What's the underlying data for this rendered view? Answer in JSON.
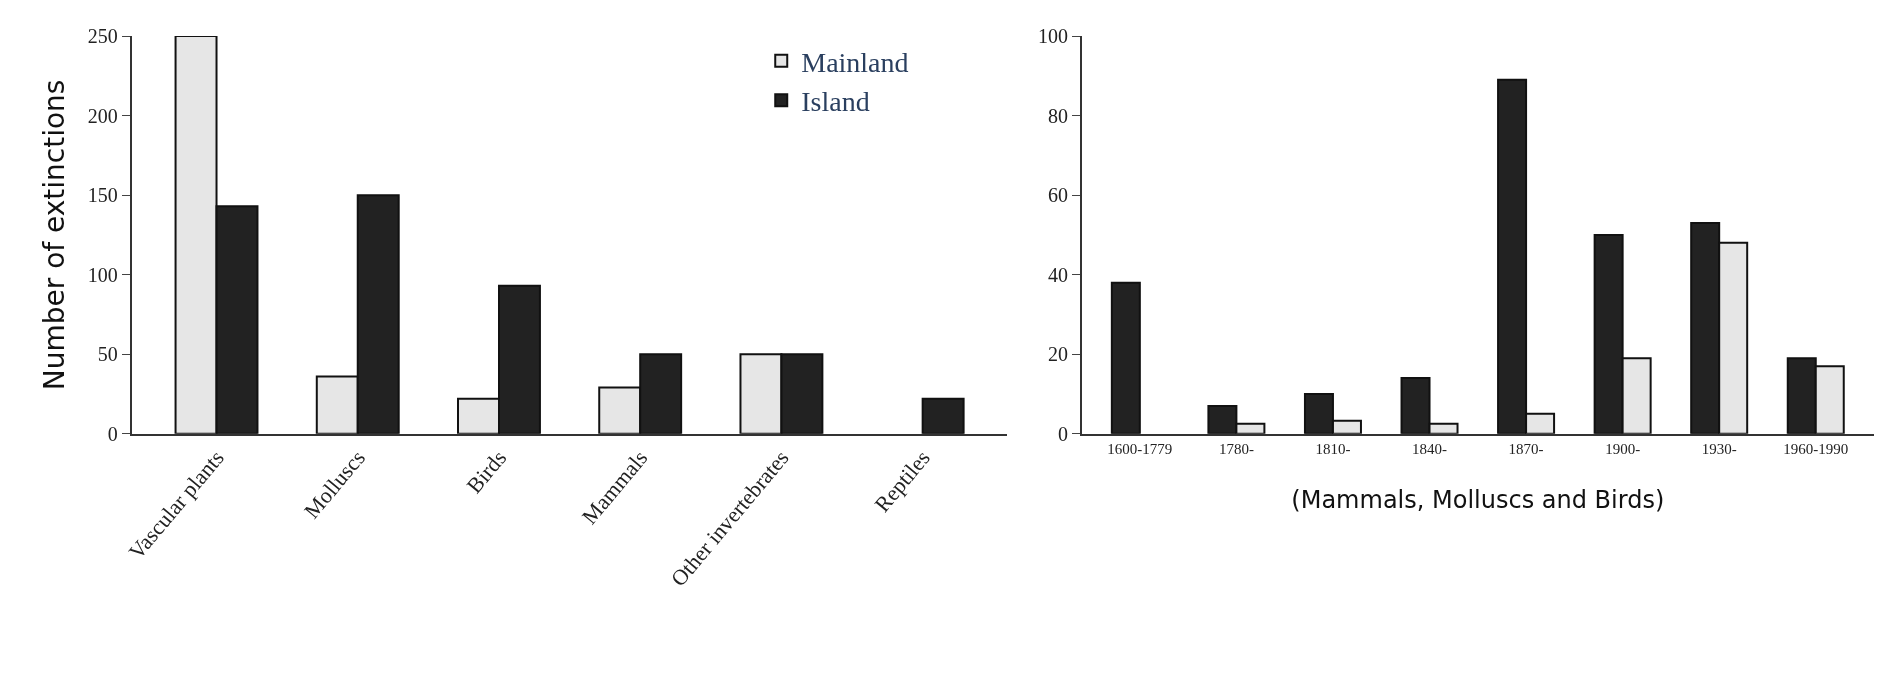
{
  "chart_data": [
    {
      "type": "bar",
      "ylabel": "Number of extinctions",
      "categories": [
        "Vascular plants",
        "Molluscs",
        "Birds",
        "Mammals",
        "Other invertebrates",
        "Reptiles"
      ],
      "ylim": [
        0,
        250
      ],
      "yticks": [
        0,
        50,
        100,
        150,
        200,
        250
      ],
      "legend": "top right",
      "series": [
        {
          "name": "Mainland",
          "color": "#e6e6e6",
          "values": [
            250,
            36,
            22,
            29,
            50,
            null
          ]
        },
        {
          "name": "Island",
          "color": "#222222",
          "values": [
            143,
            150,
            93,
            50,
            50,
            22
          ]
        }
      ]
    },
    {
      "type": "bar",
      "xlabel": "(Mammals, Molluscs and Birds)",
      "categories": [
        "1600-1779",
        "1780-",
        "1810-",
        "1840-",
        "1870-",
        "1900-",
        "1930-",
        "1960-1990"
      ],
      "ylim": [
        0,
        100
      ],
      "yticks": [
        0,
        20,
        40,
        60,
        80,
        100
      ],
      "series": [
        {
          "color": "#222222",
          "values": [
            38,
            7,
            10,
            14,
            89,
            50,
            53,
            19
          ]
        },
        {
          "color": "#e6e6e6",
          "values": [
            null,
            2.5,
            3.3,
            2.5,
            5,
            19,
            48,
            17
          ]
        }
      ]
    }
  ]
}
